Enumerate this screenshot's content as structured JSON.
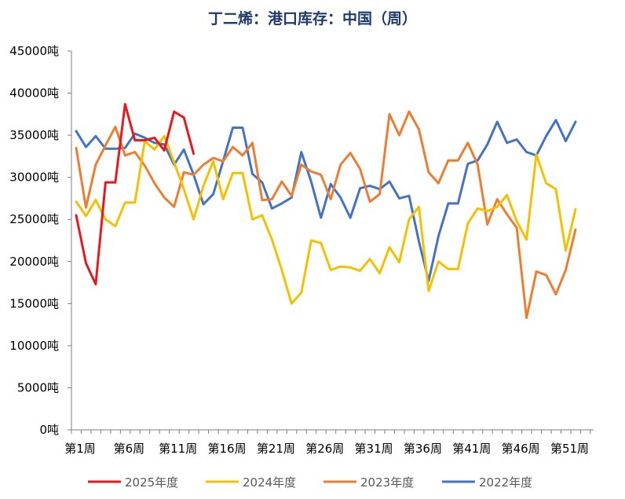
{
  "chart_data": {
    "type": "line",
    "title": "丁二烯：港口库存：中国（周）",
    "y_ticks": [
      "0吨",
      "5000吨",
      "10000吨",
      "15000吨",
      "20000吨",
      "25000吨",
      "30000吨",
      "35000吨",
      "40000吨",
      "45000吨"
    ],
    "ylim": [
      0,
      45000
    ],
    "x_ticks": [
      "第1周",
      "第6周",
      "第11周",
      "第16周",
      "第21周",
      "第26周",
      "第31周",
      "第36周",
      "第41周",
      "第46周",
      "第51周"
    ],
    "x_tick_weeks": [
      1,
      6,
      11,
      16,
      21,
      26,
      31,
      36,
      41,
      46,
      51
    ],
    "xlim": [
      1,
      53
    ],
    "grid": false,
    "legend_position": "bottom",
    "series": [
      {
        "name": "2025年度",
        "color": "#e8191c",
        "values": [
          25500,
          19800,
          17300,
          29400,
          29400,
          38700,
          34400,
          34400,
          34700,
          33200,
          37800,
          37100,
          32800
        ]
      },
      {
        "name": "2024年度",
        "color": "#f5c000",
        "values": [
          27100,
          25400,
          27300,
          25000,
          24200,
          27000,
          27000,
          34300,
          33300,
          34900,
          31800,
          28600,
          25000,
          29000,
          31900,
          27400,
          30500,
          30500,
          25000,
          25500,
          22600,
          19000,
          15000,
          16300,
          22500,
          22200,
          19000,
          19400,
          19300,
          18900,
          20300,
          18600,
          21700,
          19900,
          25000,
          26500,
          16500,
          20000,
          19100,
          19100,
          24500,
          26300,
          26000,
          26500,
          27900,
          24800,
          22600,
          32700,
          29300,
          28600,
          21300,
          26200
        ]
      },
      {
        "name": "2023年度",
        "color": "#ed7d31",
        "values": [
          33500,
          26400,
          31500,
          33800,
          36000,
          32600,
          33000,
          31400,
          29300,
          27600,
          26500,
          30600,
          30300,
          31500,
          32300,
          31900,
          33600,
          32600,
          34100,
          27300,
          27400,
          29500,
          27800,
          31500,
          30700,
          30300,
          27400,
          31500,
          32900,
          31000,
          27100,
          28000,
          37500,
          35000,
          37800,
          35700,
          30600,
          29300,
          32000,
          32000,
          34100,
          31500,
          24400,
          27400,
          25600,
          24000,
          13300,
          18800,
          18400,
          16100,
          19000,
          23800
        ]
      },
      {
        "name": "2022年度",
        "color": "#4472c4",
        "values": [
          35500,
          33600,
          34900,
          33400,
          33400,
          33500,
          35200,
          34700,
          34100,
          33900,
          31500,
          33300,
          30300,
          26800,
          28000,
          31900,
          35900,
          35900,
          30400,
          29400,
          26300,
          26900,
          27600,
          33000,
          29500,
          25200,
          29200,
          27600,
          25200,
          28700,
          29000,
          28600,
          29500,
          27500,
          27800,
          22400,
          17700,
          23000,
          26900,
          26900,
          31600,
          32000,
          33900,
          36600,
          34100,
          34500,
          33000,
          32600,
          34900,
          36800,
          34300,
          36600
        ]
      }
    ]
  }
}
